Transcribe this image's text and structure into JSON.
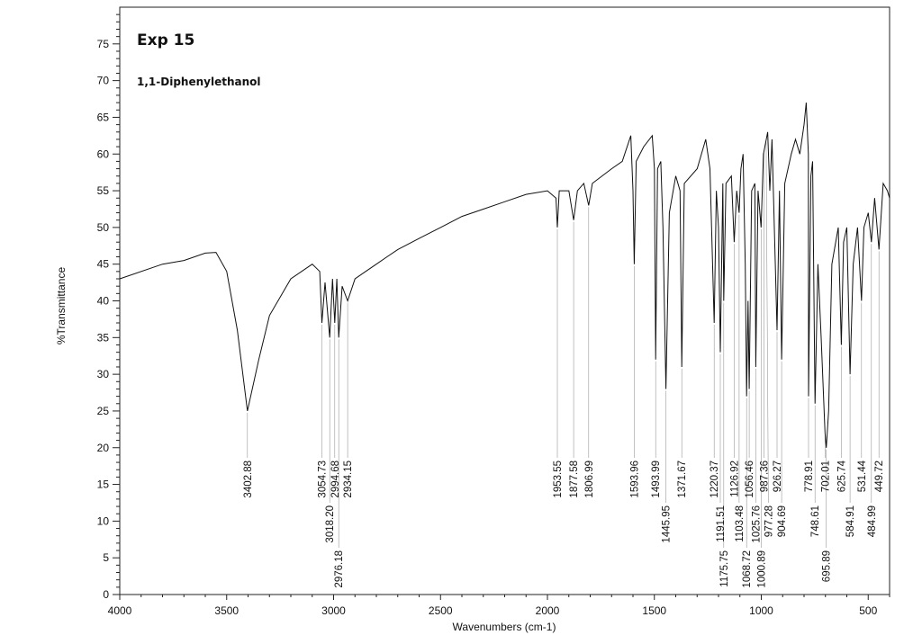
{
  "chart_data": {
    "type": "line",
    "annotations": [
      "Exp 15",
      "1,1-Diphenylethanol"
    ],
    "xlabel": "Wavenumbers (cm-1)",
    "ylabel": "%Transmittance",
    "xlim": [
      4000,
      400
    ],
    "ylim": [
      0,
      80
    ],
    "x_reversed": true,
    "grid": false,
    "x_ticks": [
      "4000",
      "3500",
      "3000",
      "2500",
      "2000",
      "1500",
      "1000",
      "500"
    ],
    "y_ticks": [
      "0",
      "5",
      "10",
      "15",
      "20",
      "25",
      "30",
      "35",
      "40",
      "45",
      "50",
      "55",
      "60",
      "65",
      "70",
      "75"
    ],
    "series": [
      {
        "color": "#111111",
        "points": [
          [
            4000,
            43
          ],
          [
            3800,
            45
          ],
          [
            3700,
            45.5
          ],
          [
            3600,
            46.5
          ],
          [
            3550,
            46.6
          ],
          [
            3500,
            44
          ],
          [
            3450,
            36
          ],
          [
            3402.88,
            25
          ],
          [
            3350,
            32
          ],
          [
            3300,
            38
          ],
          [
            3200,
            43
          ],
          [
            3100,
            45
          ],
          [
            3065,
            44
          ],
          [
            3054.73,
            37
          ],
          [
            3040,
            42.5
          ],
          [
            3018.2,
            35
          ],
          [
            3005,
            43
          ],
          [
            2994.68,
            37
          ],
          [
            2985,
            43
          ],
          [
            2976.18,
            35
          ],
          [
            2960,
            42
          ],
          [
            2934.15,
            40
          ],
          [
            2900,
            43
          ],
          [
            2850,
            44
          ],
          [
            2800,
            45
          ],
          [
            2750,
            46
          ],
          [
            2700,
            47
          ],
          [
            2600,
            48.5
          ],
          [
            2500,
            50
          ],
          [
            2400,
            51.5
          ],
          [
            2300,
            52.5
          ],
          [
            2200,
            53.5
          ],
          [
            2100,
            54.5
          ],
          [
            2000,
            55
          ],
          [
            1960,
            54
          ],
          [
            1953.55,
            50
          ],
          [
            1945,
            55
          ],
          [
            1900,
            55
          ],
          [
            1877.58,
            51
          ],
          [
            1860,
            55
          ],
          [
            1830,
            56
          ],
          [
            1806.99,
            53
          ],
          [
            1790,
            56
          ],
          [
            1700,
            58
          ],
          [
            1650,
            59
          ],
          [
            1610,
            62.5
          ],
          [
            1600,
            55
          ],
          [
            1593.96,
            45
          ],
          [
            1585,
            59
          ],
          [
            1550,
            61
          ],
          [
            1510,
            62.5
          ],
          [
            1500,
            58
          ],
          [
            1493.99,
            32
          ],
          [
            1485,
            58
          ],
          [
            1470,
            59
          ],
          [
            1460,
            50
          ],
          [
            1445.95,
            28
          ],
          [
            1430,
            52
          ],
          [
            1400,
            57
          ],
          [
            1380,
            55
          ],
          [
            1371.67,
            31
          ],
          [
            1360,
            56
          ],
          [
            1300,
            58
          ],
          [
            1260,
            62
          ],
          [
            1240,
            58
          ],
          [
            1220.37,
            37
          ],
          [
            1210,
            55
          ],
          [
            1200,
            50
          ],
          [
            1191.51,
            33
          ],
          [
            1180,
            56
          ],
          [
            1175.75,
            40
          ],
          [
            1165,
            56
          ],
          [
            1140,
            57
          ],
          [
            1126.92,
            48
          ],
          [
            1115,
            55
          ],
          [
            1103.48,
            52
          ],
          [
            1095,
            58
          ],
          [
            1085,
            60
          ],
          [
            1075,
            45
          ],
          [
            1068.72,
            27
          ],
          [
            1062,
            40
          ],
          [
            1056.46,
            28
          ],
          [
            1045,
            55
          ],
          [
            1030,
            56
          ],
          [
            1025.76,
            31
          ],
          [
            1015,
            55
          ],
          [
            1000.89,
            50
          ],
          [
            990,
            60
          ],
          [
            970,
            63
          ],
          [
            960,
            55
          ],
          [
            950,
            62
          ],
          [
            926.27,
            36
          ],
          [
            915,
            55
          ],
          [
            904.69,
            32
          ],
          [
            890,
            56
          ],
          [
            860,
            60
          ],
          [
            840,
            62
          ],
          [
            820,
            60
          ],
          [
            800,
            64
          ],
          [
            790,
            67
          ],
          [
            780,
            60
          ],
          [
            778.91,
            27
          ],
          [
            768,
            57
          ],
          [
            760,
            59
          ],
          [
            748.61,
            26
          ],
          [
            735,
            45
          ],
          [
            720,
            35
          ],
          [
            702.01,
            22
          ],
          [
            695.89,
            20
          ],
          [
            685,
            25
          ],
          [
            670,
            45
          ],
          [
            640,
            50
          ],
          [
            625.74,
            34
          ],
          [
            615,
            48
          ],
          [
            600,
            50
          ],
          [
            584.91,
            30
          ],
          [
            570,
            45
          ],
          [
            550,
            50
          ],
          [
            531.44,
            40
          ],
          [
            520,
            50
          ],
          [
            500,
            52
          ],
          [
            484.99,
            48
          ],
          [
            470,
            54
          ],
          [
            449.72,
            47
          ],
          [
            430,
            56
          ],
          [
            410,
            55
          ],
          [
            400,
            54
          ]
        ]
      }
    ],
    "peak_labels": [
      {
        "x": 3402.88,
        "label": "3402.88"
      },
      {
        "x": 3054.73,
        "label": "3054.73"
      },
      {
        "x": 3018.2,
        "label": "3018.20"
      },
      {
        "x": 2994.68,
        "label": "2994.68"
      },
      {
        "x": 2976.18,
        "label": "2976.18"
      },
      {
        "x": 2934.15,
        "label": "2934.15"
      },
      {
        "x": 1953.55,
        "label": "1953.55"
      },
      {
        "x": 1877.58,
        "label": "1877.58"
      },
      {
        "x": 1806.99,
        "label": "1806.99"
      },
      {
        "x": 1593.96,
        "label": "1593.96"
      },
      {
        "x": 1493.99,
        "label": "1493.99"
      },
      {
        "x": 1445.95,
        "label": "1445.95"
      },
      {
        "x": 1371.67,
        "label": "1371.67"
      },
      {
        "x": 1220.37,
        "label": "1220.37"
      },
      {
        "x": 1191.51,
        "label": "1191.51"
      },
      {
        "x": 1175.75,
        "label": "1175.75"
      },
      {
        "x": 1126.92,
        "label": "1126.92"
      },
      {
        "x": 1103.48,
        "label": "1103.48"
      },
      {
        "x": 1068.72,
        "label": "1068.72"
      },
      {
        "x": 1056.46,
        "label": "1056.46"
      },
      {
        "x": 1025.76,
        "label": "1025.76"
      },
      {
        "x": 1000.89,
        "label": "1000.89"
      },
      {
        "x": 987.36,
        "label": "987.36"
      },
      {
        "x": 977.28,
        "label": "977.28"
      },
      {
        "x": 926.27,
        "label": "926.27"
      },
      {
        "x": 904.69,
        "label": "904.69"
      },
      {
        "x": 778.91,
        "label": "778.91"
      },
      {
        "x": 748.61,
        "label": "748.61"
      },
      {
        "x": 702.01,
        "label": "702.01"
      },
      {
        "x": 695.89,
        "label": "695.89"
      },
      {
        "x": 625.74,
        "label": "625.74"
      },
      {
        "x": 584.91,
        "label": "584.91"
      },
      {
        "x": 531.44,
        "label": "531.44"
      },
      {
        "x": 484.99,
        "label": "484.99"
      },
      {
        "x": 449.72,
        "label": "449.72"
      }
    ]
  }
}
